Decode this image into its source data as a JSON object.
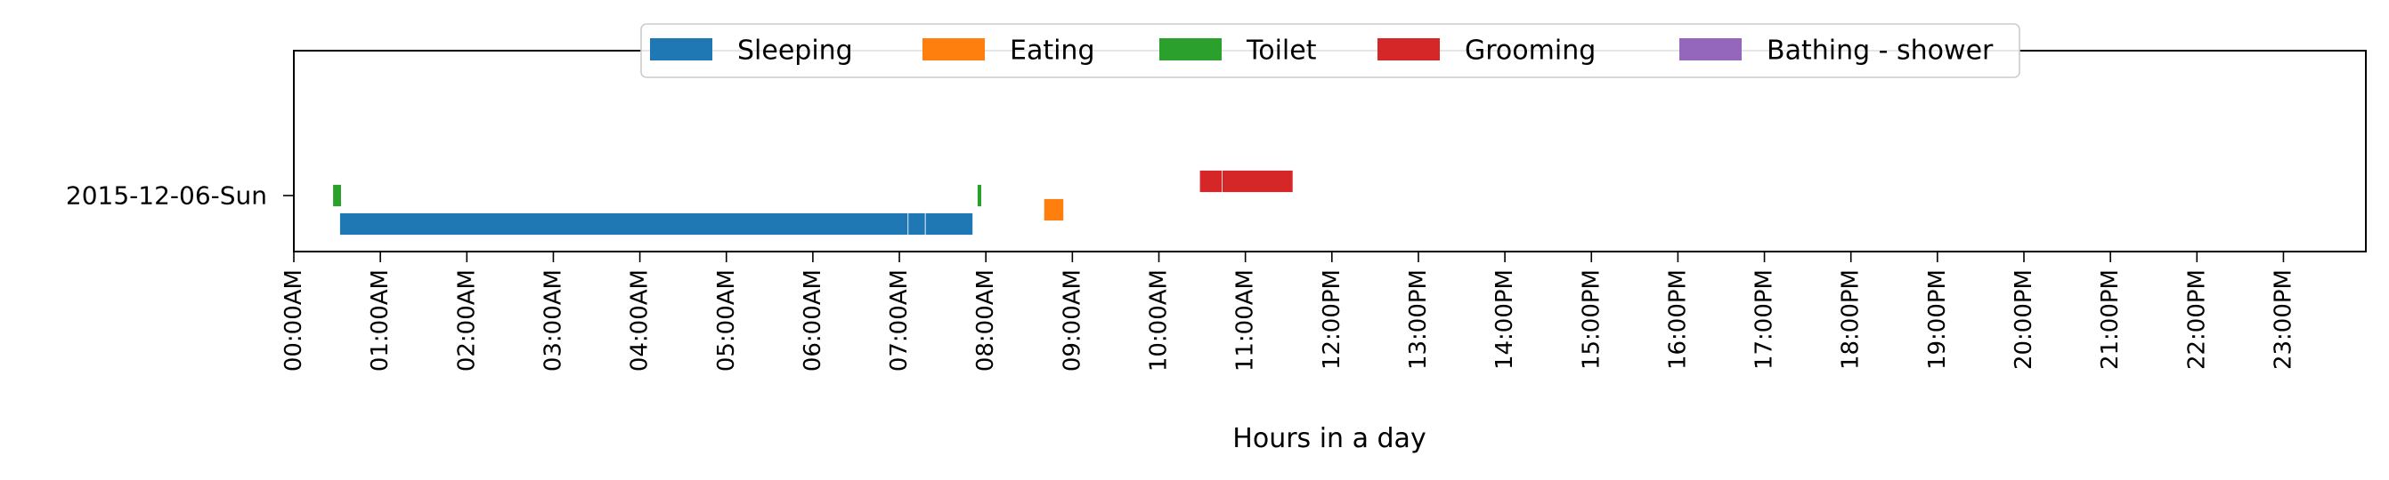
{
  "chart_data": {
    "type": "timeline",
    "title": "",
    "xlabel": "Hours in a day",
    "ylabel": "",
    "xlim": [
      0,
      24
    ],
    "x_unit": "hours",
    "categories": [
      "2015-12-06-Sun"
    ],
    "x_tick_labels": [
      "00:00AM",
      "01:00AM",
      "02:00AM",
      "03:00AM",
      "04:00AM",
      "05:00AM",
      "06:00AM",
      "07:00AM",
      "08:00AM",
      "09:00AM",
      "10:00AM",
      "11:00AM",
      "12:00PM",
      "13:00PM",
      "14:00PM",
      "15:00PM",
      "16:00PM",
      "17:00PM",
      "18:00PM",
      "19:00PM",
      "20:00PM",
      "21:00PM",
      "22:00PM",
      "23:00PM"
    ],
    "legend_position": "top-center",
    "grid": false,
    "series": [
      {
        "name": "Sleeping",
        "color": "#1f77b4",
        "lane": -1,
        "intervals": [
          [
            0.53,
            7.1
          ],
          [
            7.1,
            7.3
          ],
          [
            7.3,
            7.85
          ]
        ]
      },
      {
        "name": "Eating",
        "color": "#ff7f0e",
        "lane": -0.5,
        "intervals": [
          [
            8.67,
            8.9
          ]
        ]
      },
      {
        "name": "Toilet",
        "color": "#2ca02c",
        "lane": 0,
        "intervals": [
          [
            0.45,
            0.55
          ],
          [
            7.9,
            7.95
          ]
        ]
      },
      {
        "name": "Grooming",
        "color": "#d62728",
        "lane": 0.5,
        "intervals": [
          [
            10.47,
            10.73
          ],
          [
            10.73,
            11.55
          ]
        ]
      },
      {
        "name": "Bathing - shower",
        "color": "#9467bd",
        "lane": 1,
        "intervals": []
      }
    ]
  }
}
